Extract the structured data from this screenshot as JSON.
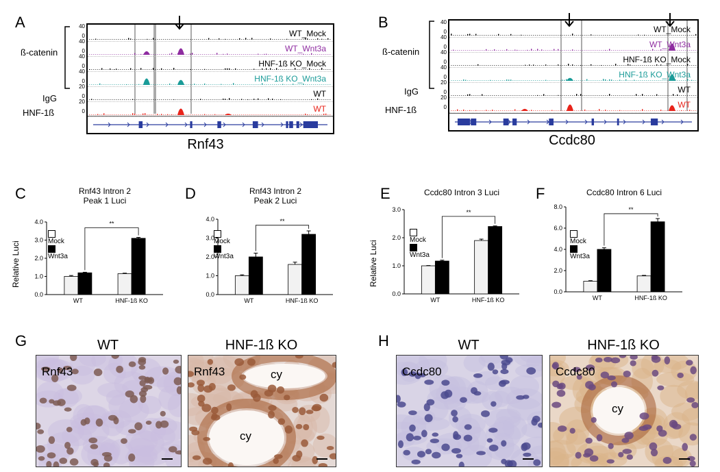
{
  "panels": {
    "A": "A",
    "B": "B",
    "C": "C",
    "D": "D",
    "E": "E",
    "F": "F",
    "G": "G",
    "H": "H"
  },
  "track_panels": {
    "left_labels": {
      "beta_catenin": "ß-catenin",
      "igg": "IgG",
      "hnf": "HNF-1ß"
    },
    "A": {
      "gene": "Rnf43",
      "tracks": [
        {
          "name": "WT_Mock",
          "color": "#000000",
          "scale_top": "40",
          "scale_bot": "0"
        },
        {
          "name": "WT_Wnt3a",
          "color": "#8e2ca0",
          "scale_top": "40",
          "scale_bot": "0"
        },
        {
          "name": "HNF-1ß KO_Mock",
          "color": "#000000",
          "scale_top": "40",
          "scale_bot": "0"
        },
        {
          "name": "HNF-1ß KO_Wnt3a",
          "color": "#1a9b98",
          "scale_top": "40",
          "scale_bot": "0"
        },
        {
          "name": "WT",
          "color": "#000000",
          "scale_top": "20",
          "scale_bot": "0"
        },
        {
          "name": "WT",
          "color": "#e8241b",
          "scale_top": "20",
          "scale_bot": "0"
        }
      ]
    },
    "B": {
      "gene": "Ccdc80",
      "tracks": [
        {
          "name": "WT_Mock",
          "color": "#000000",
          "scale_top": "40",
          "scale_bot": "0"
        },
        {
          "name": "WT_Wnt3a",
          "color": "#8e2ca0",
          "scale_top": "40",
          "scale_bot": "0"
        },
        {
          "name": "HNF-1ß KO_Mock",
          "color": "#000000",
          "scale_top": "40",
          "scale_bot": "0"
        },
        {
          "name": "HNF-1ß KO_Wnt3a",
          "color": "#1a9b98",
          "scale_top": "40",
          "scale_bot": "0"
        },
        {
          "name": "WT",
          "color": "#000000",
          "scale_top": "20",
          "scale_bot": "0"
        },
        {
          "name": "WT",
          "color": "#e8241b",
          "scale_top": "20",
          "scale_bot": "0"
        }
      ]
    }
  },
  "chart_data": [
    {
      "type": "bar",
      "title": "Rnf43 Intron 2\nPeak 1 Luci",
      "ylabel": "Relative Luci",
      "ylim": [
        0,
        4.0
      ],
      "yticks": [
        "0.0",
        "1.0",
        "2.0",
        "3.0",
        "4.0"
      ],
      "categories": [
        "WT",
        "HNF-1ß KO"
      ],
      "series": [
        {
          "name": "Mock",
          "values": [
            1.0,
            1.15
          ],
          "errors": [
            0.05,
            0.03
          ]
        },
        {
          "name": "Wnt3a",
          "values": [
            1.2,
            3.1
          ],
          "errors": [
            0.03,
            0.05
          ]
        }
      ],
      "significance": "**"
    },
    {
      "type": "bar",
      "title": "Rnf43 Intron 2\nPeak 2 Luci",
      "ylim": [
        0,
        4.0
      ],
      "yticks": [
        "0.0",
        "1.0",
        "2.0",
        "3.0",
        "4.0"
      ],
      "categories": [
        "WT",
        "HNF-1ß KO"
      ],
      "series": [
        {
          "name": "Mock",
          "values": [
            1.0,
            1.6
          ],
          "errors": [
            0.05,
            0.12
          ]
        },
        {
          "name": "Wnt3a",
          "values": [
            2.0,
            3.2
          ],
          "errors": [
            0.2,
            0.18
          ]
        }
      ],
      "significance": "**"
    },
    {
      "type": "bar",
      "title": "Ccdc80 Intron 3 Luci",
      "ylabel": "Relative Luci",
      "ylim": [
        0,
        3.0
      ],
      "yticks": [
        "0.0",
        "1.0",
        "2.0",
        "3.0"
      ],
      "categories": [
        "WT",
        "HNF-1ß KO"
      ],
      "series": [
        {
          "name": "Mock",
          "values": [
            1.0,
            1.9
          ],
          "errors": [
            0.01,
            0.05
          ]
        },
        {
          "name": "Wnt3a",
          "values": [
            1.17,
            2.4
          ],
          "errors": [
            0.03,
            0.02
          ]
        }
      ],
      "significance": "**"
    },
    {
      "type": "bar",
      "title": "Ccdc80 Intron 6 Luci",
      "ylim": [
        0,
        8.0
      ],
      "yticks": [
        "0.0",
        "2.0",
        "4.0",
        "6.0",
        "8.0"
      ],
      "categories": [
        "WT",
        "HNF-1ß KO"
      ],
      "series": [
        {
          "name": "Mock",
          "values": [
            1.0,
            1.5
          ],
          "errors": [
            0.05,
            0.05
          ]
        },
        {
          "name": "Wnt3a",
          "values": [
            4.0,
            6.6
          ],
          "errors": [
            0.15,
            0.3
          ]
        }
      ],
      "significance": "**"
    }
  ],
  "legend": {
    "mock": "Mock",
    "wnt3a": "Wnt3a"
  },
  "micrographs": {
    "G": {
      "left": {
        "title": "WT",
        "label": "Rnf43",
        "extra": []
      },
      "right": {
        "title": "HNF-1ß KO",
        "label": "Rnf43",
        "extra": [
          "cy",
          "cy"
        ]
      }
    },
    "H": {
      "left": {
        "title": "WT",
        "label": "Ccdc80",
        "extra": []
      },
      "right": {
        "title": "HNF-1ß KO",
        "label": "Ccdc80",
        "extra": [
          "cy"
        ]
      }
    }
  },
  "colors": {
    "mock_fill": "#f2f2f2",
    "wnt3a_fill": "#000000",
    "purple": "#8e2ca0",
    "teal": "#1a9b98",
    "red": "#e8241b",
    "gene_blue": "#2a3c9e"
  }
}
